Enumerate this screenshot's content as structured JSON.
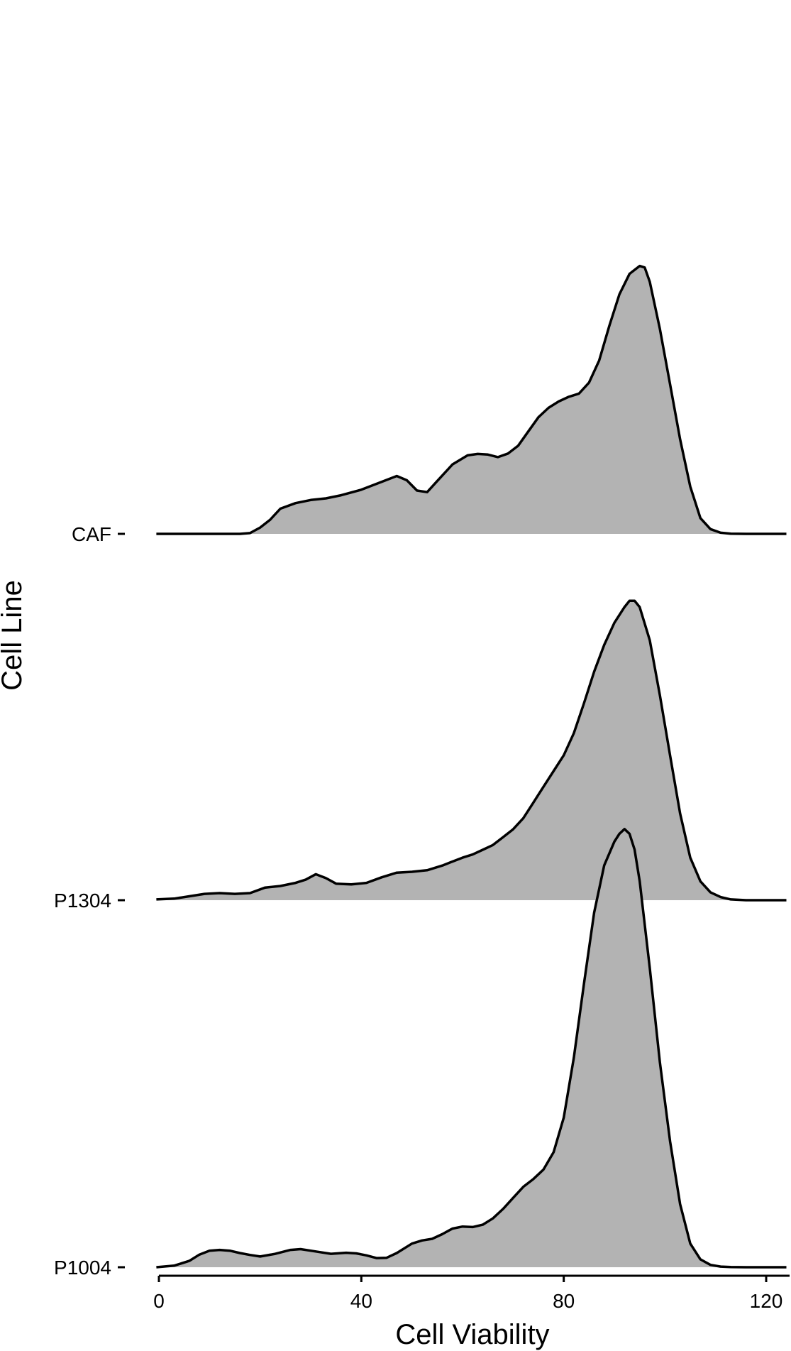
{
  "chart_data": {
    "type": "area",
    "subtype": "ridgeline-density",
    "xlabel": "Cell Viability",
    "ylabel": "Cell Line",
    "xlim": [
      0,
      124
    ],
    "x_ticks": [
      0,
      40,
      80,
      120
    ],
    "grid": false,
    "legend": "none",
    "fill_color": "#b3b3b3",
    "line_color": "#000000",
    "series": [
      {
        "name": "CAF",
        "points": [
          [
            -0.5,
            0
          ],
          [
            10,
            0
          ],
          [
            16,
            0
          ],
          [
            18,
            0.005
          ],
          [
            20,
            0.04
          ],
          [
            22,
            0.09
          ],
          [
            24,
            0.16
          ],
          [
            27,
            0.195
          ],
          [
            30,
            0.215
          ],
          [
            33,
            0.225
          ],
          [
            36,
            0.245
          ],
          [
            40,
            0.28
          ],
          [
            44,
            0.33
          ],
          [
            47,
            0.367
          ],
          [
            49,
            0.34
          ],
          [
            51,
            0.275
          ],
          [
            53,
            0.265
          ],
          [
            55,
            0.335
          ],
          [
            58,
            0.44
          ],
          [
            61,
            0.498
          ],
          [
            63,
            0.507
          ],
          [
            65,
            0.503
          ],
          [
            67,
            0.487
          ],
          [
            69,
            0.51
          ],
          [
            71,
            0.56
          ],
          [
            73,
            0.65
          ],
          [
            75,
            0.74
          ],
          [
            77,
            0.8
          ],
          [
            79,
            0.84
          ],
          [
            81,
            0.87
          ],
          [
            83,
            0.89
          ],
          [
            85,
            0.96
          ],
          [
            87,
            1.1
          ],
          [
            89,
            1.32
          ],
          [
            91,
            1.52
          ],
          [
            93,
            1.65
          ],
          [
            95,
            1.7
          ],
          [
            96,
            1.69
          ],
          [
            97,
            1.6
          ],
          [
            99,
            1.3
          ],
          [
            101,
            0.95
          ],
          [
            103,
            0.6
          ],
          [
            105,
            0.3
          ],
          [
            107,
            0.1
          ],
          [
            109,
            0.03
          ],
          [
            111,
            0.007
          ],
          [
            113,
            0.001
          ],
          [
            116,
            0
          ],
          [
            124,
            0
          ]
        ]
      },
      {
        "name": "P1304",
        "points": [
          [
            -0.5,
            0.005
          ],
          [
            3,
            0.01
          ],
          [
            6,
            0.025
          ],
          [
            9,
            0.04
          ],
          [
            12,
            0.045
          ],
          [
            15,
            0.04
          ],
          [
            18,
            0.045
          ],
          [
            21,
            0.08
          ],
          [
            24,
            0.09
          ],
          [
            27,
            0.11
          ],
          [
            29,
            0.13
          ],
          [
            31,
            0.165
          ],
          [
            33,
            0.14
          ],
          [
            35,
            0.105
          ],
          [
            38,
            0.1
          ],
          [
            41,
            0.11
          ],
          [
            44,
            0.145
          ],
          [
            47,
            0.175
          ],
          [
            50,
            0.18
          ],
          [
            53,
            0.19
          ],
          [
            56,
            0.22
          ],
          [
            58,
            0.245
          ],
          [
            60,
            0.27
          ],
          [
            62,
            0.29
          ],
          [
            64,
            0.32
          ],
          [
            66,
            0.35
          ],
          [
            68,
            0.4
          ],
          [
            70,
            0.45
          ],
          [
            72,
            0.52
          ],
          [
            74,
            0.62
          ],
          [
            76,
            0.72
          ],
          [
            78,
            0.82
          ],
          [
            80,
            0.92
          ],
          [
            82,
            1.06
          ],
          [
            84,
            1.25
          ],
          [
            86,
            1.45
          ],
          [
            88,
            1.62
          ],
          [
            90,
            1.76
          ],
          [
            92,
            1.86
          ],
          [
            93,
            1.9
          ],
          [
            94,
            1.9
          ],
          [
            95,
            1.86
          ],
          [
            97,
            1.65
          ],
          [
            99,
            1.3
          ],
          [
            101,
            0.92
          ],
          [
            103,
            0.55
          ],
          [
            105,
            0.27
          ],
          [
            107,
            0.12
          ],
          [
            109,
            0.05
          ],
          [
            111,
            0.02
          ],
          [
            113,
            0.005
          ],
          [
            116,
            0
          ],
          [
            124,
            0
          ]
        ]
      },
      {
        "name": "P1004",
        "points": [
          [
            -0.5,
            0
          ],
          [
            3,
            0.01
          ],
          [
            6,
            0.04
          ],
          [
            8,
            0.08
          ],
          [
            10,
            0.105
          ],
          [
            12,
            0.11
          ],
          [
            14,
            0.105
          ],
          [
            16,
            0.09
          ],
          [
            18,
            0.078
          ],
          [
            20,
            0.068
          ],
          [
            23,
            0.085
          ],
          [
            26,
            0.11
          ],
          [
            28,
            0.115
          ],
          [
            31,
            0.1
          ],
          [
            34,
            0.085
          ],
          [
            37,
            0.092
          ],
          [
            39,
            0.088
          ],
          [
            41,
            0.075
          ],
          [
            43,
            0.058
          ],
          [
            45,
            0.06
          ],
          [
            47,
            0.09
          ],
          [
            50,
            0.15
          ],
          [
            52,
            0.17
          ],
          [
            54,
            0.18
          ],
          [
            56,
            0.21
          ],
          [
            58,
            0.245
          ],
          [
            60,
            0.258
          ],
          [
            62,
            0.255
          ],
          [
            64,
            0.27
          ],
          [
            66,
            0.31
          ],
          [
            68,
            0.37
          ],
          [
            70,
            0.44
          ],
          [
            72,
            0.51
          ],
          [
            74,
            0.56
          ],
          [
            76,
            0.62
          ],
          [
            78,
            0.73
          ],
          [
            80,
            0.95
          ],
          [
            82,
            1.33
          ],
          [
            84,
            1.8
          ],
          [
            86,
            2.25
          ],
          [
            88,
            2.55
          ],
          [
            90,
            2.7
          ],
          [
            91,
            2.75
          ],
          [
            92,
            2.78
          ],
          [
            93,
            2.75
          ],
          [
            94,
            2.65
          ],
          [
            95,
            2.45
          ],
          [
            97,
            1.9
          ],
          [
            99,
            1.3
          ],
          [
            101,
            0.8
          ],
          [
            103,
            0.4
          ],
          [
            105,
            0.15
          ],
          [
            107,
            0.05
          ],
          [
            109,
            0.015
          ],
          [
            111,
            0.004
          ],
          [
            113,
            0.001
          ],
          [
            116,
            0
          ],
          [
            124,
            0
          ]
        ]
      }
    ]
  }
}
